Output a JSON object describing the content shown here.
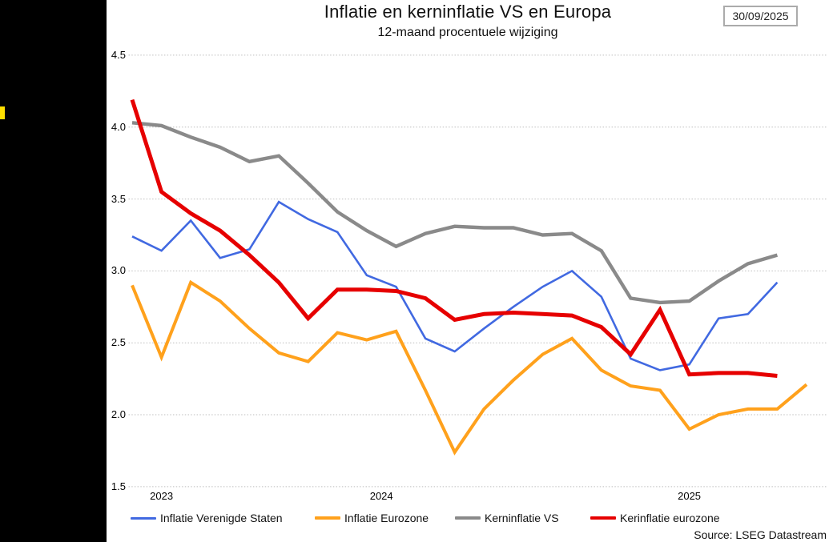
{
  "sidebar": {
    "background": "#000000",
    "accent_color": "#FFE000"
  },
  "header": {
    "title": "Inflatie en kerninflatie VS en Europa",
    "subtitle": "12-maand procentuele wijziging",
    "date": "30/09/2025"
  },
  "footer": {
    "source": "Source: LSEG Datastream"
  },
  "chart_data": {
    "type": "line",
    "title": "Inflatie en kerninflatie VS en Europa",
    "subtitle": "12-maand procentuele wijziging",
    "grid": "dotted-horizontal",
    "legend_position": "bottom",
    "ylim": [
      1.5,
      4.5
    ],
    "y_ticks": [
      "4.5",
      "4.0",
      "3.5",
      "3.0",
      "2.5",
      "2.0",
      "1.5"
    ],
    "x_labels": [
      "2023",
      "2024",
      "2025"
    ],
    "months": [
      "2023-10",
      "2023-11",
      "2023-12",
      "2024-01",
      "2024-02",
      "2024-03",
      "2024-04",
      "2024-05",
      "2024-06",
      "2024-07",
      "2024-08",
      "2024-09",
      "2024-10",
      "2024-11",
      "2024-12",
      "2025-01",
      "2025-02",
      "2025-03",
      "2025-04",
      "2025-05",
      "2025-06",
      "2025-07",
      "2025-08",
      "2025-09"
    ],
    "series": [
      {
        "name": "Inflatie Verenigde Staten",
        "color": "#4169E1",
        "width": 2.6,
        "values": [
          3.24,
          3.14,
          3.35,
          3.09,
          3.15,
          3.48,
          3.36,
          3.27,
          2.97,
          2.89,
          2.53,
          2.44,
          2.6,
          2.75,
          2.89,
          3.0,
          2.82,
          2.39,
          2.31,
          2.35,
          2.67,
          2.7,
          2.92,
          null
        ]
      },
      {
        "name": "Inflatie Eurozone",
        "color": "#FFA11C",
        "width": 4,
        "values": [
          2.9,
          2.4,
          2.92,
          2.79,
          2.6,
          2.43,
          2.37,
          2.57,
          2.52,
          2.58,
          2.17,
          1.74,
          2.04,
          2.24,
          2.42,
          2.53,
          2.31,
          2.2,
          2.17,
          1.9,
          2.0,
          2.04,
          2.04,
          2.21
        ]
      },
      {
        "name": "Kerninflatie VS",
        "color": "#8A8A8A",
        "width": 4.4,
        "values": [
          4.03,
          4.01,
          3.93,
          3.86,
          3.76,
          3.8,
          3.61,
          3.41,
          3.28,
          3.17,
          3.26,
          3.31,
          3.3,
          3.3,
          3.25,
          3.26,
          3.14,
          2.81,
          2.78,
          2.79,
          2.93,
          3.05,
          3.11,
          null
        ]
      },
      {
        "name": "Kerinflatie eurozone",
        "color": "#E60000",
        "width": 5,
        "values": [
          4.19,
          3.55,
          3.4,
          3.28,
          3.11,
          2.92,
          2.67,
          2.87,
          2.87,
          2.86,
          2.81,
          2.66,
          2.7,
          2.71,
          2.7,
          2.69,
          2.61,
          2.42,
          2.73,
          2.28,
          2.29,
          2.29,
          2.27,
          null
        ]
      }
    ],
    "gridline_color": "#BEBEBE"
  }
}
